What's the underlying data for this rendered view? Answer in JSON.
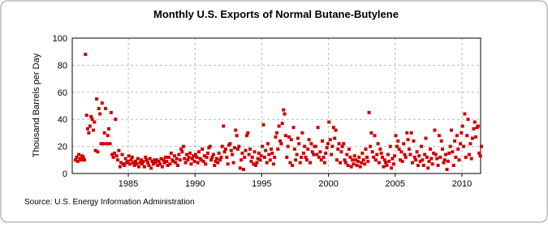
{
  "chart_data": {
    "type": "scatter",
    "title": "Monthly U.S. Exports of Normal Butane-Butylene",
    "y_label": "Thousand Barrels per Day",
    "source": "Source: U.S. Energy Information Administration",
    "xlim": [
      1980.8,
      2011.4
    ],
    "xticks": [
      1985,
      1990,
      1995,
      2000,
      2005,
      2010
    ],
    "ylim": [
      0,
      100
    ],
    "yticks": [
      0,
      20,
      40,
      60,
      80,
      100
    ],
    "grid": true,
    "series": [
      {
        "color": "#cc0000",
        "x": [
          1981.04,
          1981.13,
          1981.21,
          1981.29,
          1981.38,
          1981.46,
          1981.54,
          1981.63,
          1981.71,
          1981.79,
          1981.88,
          1981.96,
          1982.04,
          1982.13,
          1982.21,
          1982.29,
          1982.38,
          1982.46,
          1982.54,
          1982.63,
          1982.71,
          1982.79,
          1982.88,
          1982.96,
          1983.04,
          1983.13,
          1983.21,
          1983.29,
          1983.38,
          1983.46,
          1983.54,
          1983.63,
          1983.71,
          1983.79,
          1983.88,
          1983.96,
          1984.04,
          1984.13,
          1984.21,
          1984.29,
          1984.38,
          1984.46,
          1984.54,
          1984.63,
          1984.71,
          1984.79,
          1984.88,
          1984.96,
          1985.04,
          1985.13,
          1985.21,
          1985.29,
          1985.38,
          1985.46,
          1985.54,
          1985.63,
          1985.71,
          1985.79,
          1985.88,
          1985.96,
          1986.04,
          1986.13,
          1986.21,
          1986.29,
          1986.38,
          1986.46,
          1986.54,
          1986.63,
          1986.71,
          1986.79,
          1986.88,
          1986.96,
          1987.04,
          1987.13,
          1987.21,
          1987.29,
          1987.38,
          1987.46,
          1987.54,
          1987.63,
          1987.71,
          1987.79,
          1987.88,
          1987.96,
          1988.04,
          1988.13,
          1988.21,
          1988.29,
          1988.38,
          1988.46,
          1988.54,
          1988.63,
          1988.71,
          1988.79,
          1988.88,
          1988.96,
          1989.04,
          1989.13,
          1989.21,
          1989.29,
          1989.38,
          1989.46,
          1989.54,
          1989.63,
          1989.71,
          1989.79,
          1989.88,
          1989.96,
          1990.04,
          1990.13,
          1990.21,
          1990.29,
          1990.38,
          1990.46,
          1990.54,
          1990.63,
          1990.71,
          1990.79,
          1990.88,
          1990.96,
          1991.04,
          1991.13,
          1991.21,
          1991.29,
          1991.38,
          1991.46,
          1991.54,
          1991.63,
          1991.71,
          1991.79,
          1991.88,
          1991.96,
          1992.04,
          1992.13,
          1992.21,
          1992.29,
          1992.38,
          1992.46,
          1992.54,
          1992.63,
          1992.71,
          1992.79,
          1992.88,
          1992.96,
          1993.04,
          1993.13,
          1993.21,
          1993.29,
          1993.38,
          1993.46,
          1993.54,
          1993.63,
          1993.71,
          1993.79,
          1993.88,
          1993.96,
          1994.04,
          1994.13,
          1994.21,
          1994.29,
          1994.38,
          1994.46,
          1994.54,
          1994.63,
          1994.71,
          1994.79,
          1994.88,
          1994.96,
          1995.04,
          1995.13,
          1995.21,
          1995.29,
          1995.38,
          1995.46,
          1995.54,
          1995.63,
          1995.71,
          1995.79,
          1995.88,
          1995.96,
          1996.04,
          1996.13,
          1996.21,
          1996.29,
          1996.38,
          1996.46,
          1996.54,
          1996.63,
          1996.71,
          1996.79,
          1996.88,
          1996.96,
          1997.04,
          1997.13,
          1997.21,
          1997.29,
          1997.38,
          1997.46,
          1997.54,
          1997.63,
          1997.71,
          1997.79,
          1997.88,
          1997.96,
          1998.04,
          1998.13,
          1998.21,
          1998.29,
          1998.38,
          1998.46,
          1998.54,
          1998.63,
          1998.71,
          1998.79,
          1998.88,
          1998.96,
          1999.04,
          1999.13,
          1999.21,
          1999.29,
          1999.38,
          1999.46,
          1999.54,
          1999.63,
          1999.71,
          1999.79,
          1999.88,
          1999.96,
          2000.04,
          2000.13,
          2000.21,
          2000.29,
          2000.38,
          2000.46,
          2000.54,
          2000.63,
          2000.71,
          2000.79,
          2000.88,
          2000.96,
          2001.04,
          2001.13,
          2001.21,
          2001.29,
          2001.38,
          2001.46,
          2001.54,
          2001.63,
          2001.71,
          2001.79,
          2001.88,
          2001.96,
          2002.04,
          2002.13,
          2002.21,
          2002.29,
          2002.38,
          2002.46,
          2002.54,
          2002.63,
          2002.71,
          2002.79,
          2002.88,
          2002.96,
          2003.04,
          2003.13,
          2003.21,
          2003.29,
          2003.38,
          2003.46,
          2003.54,
          2003.63,
          2003.71,
          2003.79,
          2003.88,
          2003.96,
          2004.04,
          2004.13,
          2004.21,
          2004.29,
          2004.38,
          2004.46,
          2004.54,
          2004.63,
          2004.71,
          2004.79,
          2004.88,
          2004.96,
          2005.04,
          2005.13,
          2005.21,
          2005.29,
          2005.38,
          2005.46,
          2005.54,
          2005.63,
          2005.71,
          2005.79,
          2005.88,
          2005.96,
          2006.04,
          2006.13,
          2006.21,
          2006.29,
          2006.38,
          2006.46,
          2006.54,
          2006.63,
          2006.71,
          2006.79,
          2006.88,
          2006.96,
          2007.04,
          2007.13,
          2007.21,
          2007.29,
          2007.38,
          2007.46,
          2007.54,
          2007.63,
          2007.71,
          2007.79,
          2007.88,
          2007.96,
          2008.04,
          2008.13,
          2008.21,
          2008.29,
          2008.38,
          2008.46,
          2008.54,
          2008.63,
          2008.71,
          2008.79,
          2008.88,
          2008.96,
          2009.04,
          2009.13,
          2009.21,
          2009.29,
          2009.38,
          2009.46,
          2009.54,
          2009.63,
          2009.71,
          2009.79,
          2009.88,
          2009.96,
          2010.04,
          2010.13,
          2010.21,
          2010.29,
          2010.38,
          2010.46,
          2010.54,
          2010.63,
          2010.71,
          2010.79,
          2010.88,
          2010.96,
          2011.04,
          2011.13,
          2011.21,
          2011.29,
          2011.38,
          2011.46
        ],
        "values": [
          10,
          12,
          9,
          14,
          11,
          10,
          13,
          12,
          10,
          88,
          43,
          33,
          30,
          35,
          42,
          40,
          32,
          38,
          17,
          55,
          16,
          48,
          44,
          22,
          52,
          22,
          30,
          48,
          22,
          28,
          33,
          22,
          45,
          14,
          12,
          15,
          40,
          13,
          10,
          17,
          5,
          8,
          14,
          7,
          6,
          11,
          8,
          9,
          13,
          7,
          10,
          12,
          8,
          6,
          9,
          7,
          11,
          5,
          8,
          10,
          7,
          9,
          5,
          12,
          10,
          8,
          6,
          11,
          4,
          9,
          7,
          10,
          8,
          10,
          6,
          9,
          7,
          11,
          5,
          10,
          8,
          12,
          9,
          6,
          12,
          7,
          15,
          10,
          9,
          13,
          8,
          11,
          6,
          14,
          10,
          18,
          16,
          20,
          11,
          8,
          14,
          10,
          12,
          15,
          7,
          11,
          13,
          9,
          14,
          12,
          8,
          16,
          11,
          10,
          18,
          9,
          13,
          7,
          12,
          15,
          19,
          20,
          10,
          12,
          14,
          6,
          9,
          11,
          8,
          15,
          10,
          12,
          20,
          35,
          16,
          18,
          12,
          7,
          21,
          22,
          17,
          14,
          8,
          19,
          32,
          28,
          18,
          20,
          4,
          10,
          15,
          3,
          12,
          17,
          28,
          30,
          14,
          18,
          9,
          12,
          7,
          16,
          6,
          8,
          11,
          15,
          10,
          13,
          20,
          36,
          12,
          17,
          8,
          22,
          14,
          10,
          18,
          15,
          7,
          12,
          27,
          30,
          18,
          35,
          24,
          22,
          37,
          47,
          44,
          28,
          12,
          20,
          27,
          8,
          25,
          6,
          34,
          18,
          10,
          14,
          26,
          22,
          8,
          12,
          30,
          15,
          20,
          12,
          10,
          18,
          25,
          8,
          22,
          16,
          14,
          20,
          20,
          14,
          34,
          12,
          16,
          10,
          24,
          12,
          8,
          15,
          19,
          22,
          38,
          25,
          14,
          20,
          34,
          26,
          32,
          10,
          18,
          22,
          8,
          16,
          20,
          22,
          10,
          8,
          14,
          6,
          18,
          12,
          5,
          10,
          7,
          13,
          10,
          6,
          9,
          12,
          5,
          8,
          15,
          10,
          7,
          18,
          12,
          9,
          45,
          20,
          30,
          16,
          12,
          28,
          10,
          14,
          22,
          8,
          18,
          15,
          12,
          5,
          10,
          8,
          6,
          14,
          9,
          20,
          4,
          11,
          7,
          13,
          28,
          20,
          24,
          18,
          10,
          16,
          9,
          22,
          14,
          12,
          30,
          25,
          18,
          14,
          30,
          8,
          24,
          12,
          10,
          16,
          6,
          13,
          9,
          20,
          10,
          6,
          14,
          26,
          12,
          4,
          9,
          18,
          11,
          7,
          15,
          32,
          14,
          11,
          6,
          28,
          12,
          24,
          18,
          8,
          10,
          14,
          3,
          9,
          15,
          20,
          32,
          16,
          6,
          24,
          12,
          28,
          18,
          10,
          22,
          30,
          35,
          20,
          44,
          12,
          28,
          40,
          14,
          22,
          11,
          26,
          33,
          38,
          27,
          34,
          35,
          15,
          13,
          20
        ]
      }
    ]
  }
}
